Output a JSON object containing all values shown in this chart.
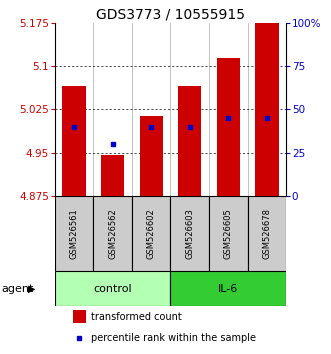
{
  "title": "GDS3773 / 10555915",
  "samples": [
    "GSM526561",
    "GSM526562",
    "GSM526602",
    "GSM526603",
    "GSM526605",
    "GSM526678"
  ],
  "red_values": [
    5.065,
    4.945,
    5.013,
    5.065,
    5.115,
    5.175
  ],
  "blue_percentiles": [
    40,
    30,
    40,
    40,
    45,
    45
  ],
  "ylim_left": [
    4.875,
    5.175
  ],
  "yticks_left": [
    4.875,
    4.95,
    5.025,
    5.1,
    5.175
  ],
  "ytick_labels_left": [
    "4.875",
    "4.95",
    "5.025",
    "5.1",
    "5.175"
  ],
  "yticks_right": [
    0,
    25,
    50,
    75,
    100
  ],
  "ytick_labels_right": [
    "0",
    "25",
    "50",
    "75",
    "100%"
  ],
  "bar_bottom": 4.875,
  "control_color": "#b3ffb3",
  "il6_color": "#33cc33",
  "gray_color": "#cccccc",
  "red_color": "#cc0000",
  "blue_color": "#0000cc",
  "title_fontsize": 10,
  "tick_fontsize": 7.5,
  "sample_fontsize": 6,
  "group_fontsize": 8,
  "legend_fontsize": 7,
  "agent_fontsize": 8
}
